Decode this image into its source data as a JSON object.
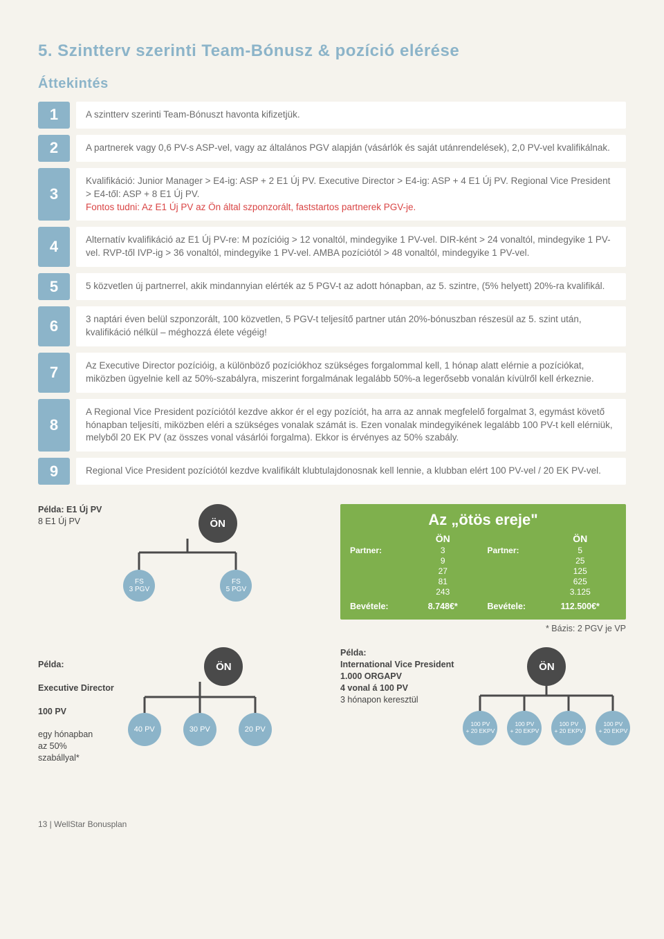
{
  "title": "5. Szintterv szerinti Team-Bónusz & pozíció elérése",
  "subtitle": "Áttekintés",
  "rules": [
    {
      "num": "1",
      "text": "A szintterv szerinti Team-Bónuszt havonta kifizetjük."
    },
    {
      "num": "2",
      "text": "A partnerek vagy 0,6 PV-s ASP-vel, vagy az általános PGV alapján (vásárlók és saját utánrendelések), 2,0 PV-vel kvalifikálnak."
    },
    {
      "num": "3",
      "text_plain": "Kvalifikáció: Junior Manager > E4-ig: ASP + 2 E1 Új PV. Executive Director > E4-ig: ASP + 4 E1 Új PV. Regional Vice President > E4-től: ASP + 8 E1 Új PV.",
      "text_red": "Fontos tudni: Az E1 Új PV az Ön által szponzorált, faststartos partnerek PGV-je."
    },
    {
      "num": "4",
      "text": "Alternatív kvalifikáció az E1 Új PV-re: M pozícióig > 12 vonaltól, mindegyike 1 PV-vel. DIR-ként > 24 vonaltól, mindegyike 1 PV-vel. RVP-től IVP-ig > 36 vonaltól, mindegyike 1 PV-vel. AMBA pozíciótól > 48 vonaltól, mindegyike 1 PV-vel."
    },
    {
      "num": "5",
      "text": "5 közvetlen új partnerrel, akik mindannyian elérték az 5 PGV-t az adott hónapban, az 5. szintre, (5% helyett) 20%-ra kvalifikál."
    },
    {
      "num": "6",
      "text": "3 naptári éven belül szponzorált, 100 közvetlen, 5 PGV-t teljesítő partner után 20%-bónuszban részesül az 5. szint után, kvalifikáció nélkül – méghozzá élete végéig!"
    },
    {
      "num": "7",
      "text": "Az Executive Director pozícióig, a különböző pozíciókhoz szükséges forgalommal kell, 1 hónap alatt elérnie a pozíciókat, miközben ügyelnie kell az 50%-szabályra, miszerint forgalmának legalább 50%-a legerősebb vonalán kívülről kell érkeznie."
    },
    {
      "num": "8",
      "text": "A Regional Vice President pozíciótól kezdve akkor ér el egy pozíciót, ha arra az annak megfelelő forgalmat 3, egymást követő hónapban teljesíti, miközben eléri a szükséges vonalak számát is. Ezen vonalak mindegyikének legalább 100 PV-t kell elérniük, melyből 20 EK PV (az összes vonal vásárlói forgalma). Ekkor is érvényes az 50% szabály."
    },
    {
      "num": "9",
      "text": "Regional Vice President pozíciótól kezdve kvalifikált klubtulajdonosnak kell lennie, a klubban elért 100 PV-vel / 20 EK PV-vel."
    }
  ],
  "example1": {
    "label_bold": "Példa: E1 Új PV",
    "label_rest": "8 E1 Új PV",
    "on": "ÖN",
    "leaves": [
      {
        "line1": "FS",
        "line2": "3 PGV"
      },
      {
        "line1": "FS",
        "line2": "5 PGV"
      }
    ]
  },
  "green": {
    "title": "Az „ötös ereje\"",
    "col1_hdr": "ÖN",
    "col2_hdr": "ÖN",
    "partner_lbl": "Partner:",
    "col1_vals": [
      "3",
      "9",
      "27",
      "81",
      "243"
    ],
    "col2_vals": [
      "5",
      "25",
      "125",
      "625",
      "3.125"
    ],
    "bevetele_lbl": "Bevétele:",
    "bev1": "8.748€*",
    "bev2": "112.500€*",
    "note": "* Bázis: 2 PGV je VP"
  },
  "example2": {
    "label_bold1": "Példa:",
    "label_bold2": "Executive Director",
    "label_bold3": "100 PV",
    "label_rest": "egy hónapban\naz 50%\nszabállyal*",
    "on": "ÖN",
    "leaves": [
      {
        "line1": "40 PV"
      },
      {
        "line1": "30 PV"
      },
      {
        "line1": "20 PV"
      }
    ]
  },
  "example3": {
    "label_bold1": "Példa:",
    "label_bold2": "International Vice President",
    "label_bold3": "1.000 ORGAPV",
    "label_bold4": "4 vonal á 100 PV",
    "label_rest": "3 hónapon keresztül",
    "on": "ÖN",
    "leaves": [
      {
        "line1": "100 PV",
        "line2": "+ 20 EKPV"
      },
      {
        "line1": "100 PV",
        "line2": "+ 20 EKPV"
      },
      {
        "line1": "100 PV",
        "line2": "+ 20 EKPV"
      },
      {
        "line1": "100 PV",
        "line2": "+ 20 EKPV"
      }
    ]
  },
  "footer": "13 | WellStar Bonusplan",
  "colors": {
    "blue": "#8cb4c9",
    "dark": "#4a4a4a",
    "green": "#7fb04d",
    "red": "#d94444",
    "bg": "#f5f3ed"
  }
}
